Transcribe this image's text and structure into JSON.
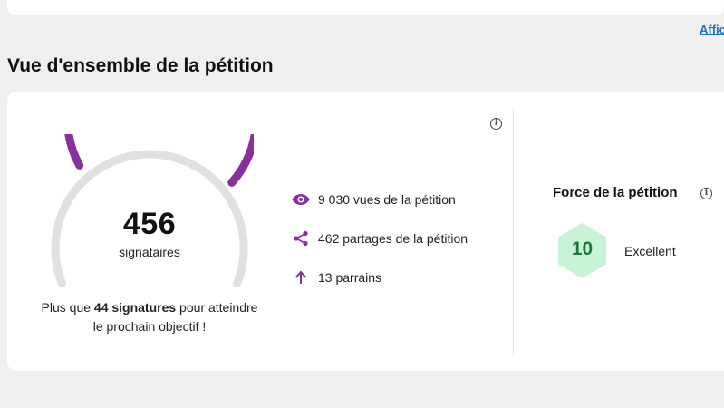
{
  "header": {
    "show_link": "Affic"
  },
  "overview": {
    "title": "Vue d'ensemble de la pétition",
    "info_icon": "info-icon",
    "gauge": {
      "count": "456",
      "label": "signataires",
      "progress": 0.91,
      "fill_color": "#8a2f9e",
      "track_color": "#e0e0e0"
    },
    "goal": {
      "prefix": "Plus que ",
      "highlight": "44 signatures",
      "suffix": " pour atteindre le prochain objectif !"
    },
    "stats": [
      {
        "icon": "eye-icon",
        "text": "9 030 vues de la pétition"
      },
      {
        "icon": "share-icon",
        "text": "462 partages de la pétition"
      },
      {
        "icon": "arrow-up-icon",
        "text": "13 parrains"
      }
    ],
    "icon_color": "#8a2f9e"
  },
  "strength": {
    "title": "Force de la pétition",
    "score": "10",
    "rating": "Excellent",
    "hex_color": "#c7f3d6",
    "score_color": "#1a7a3b"
  }
}
